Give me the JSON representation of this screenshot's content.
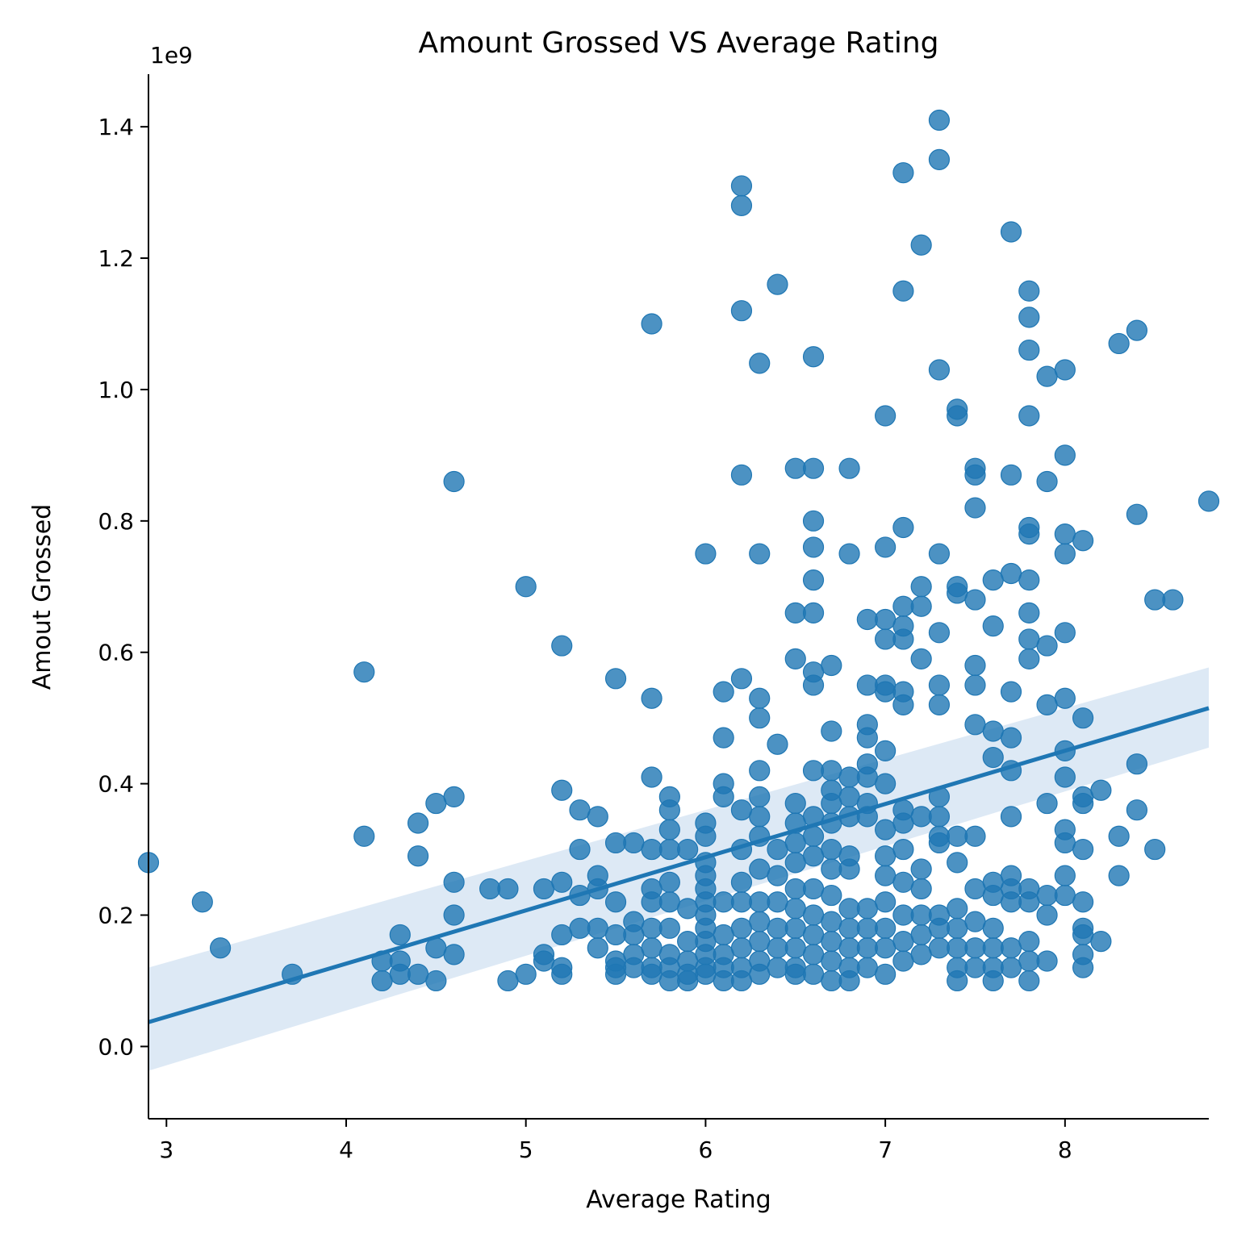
{
  "chart_data": {
    "type": "scatter",
    "title": "Amount Grossed VS Average Rating",
    "xlabel": "Average Rating",
    "ylabel": "Amout Grossed",
    "offset_text": "1e9",
    "xlim": [
      2.9,
      8.8
    ],
    "ylim": [
      -0.11,
      1.48
    ],
    "xticks": [
      3,
      4,
      5,
      6,
      7,
      8
    ],
    "yticks": [
      0.0,
      0.2,
      0.4,
      0.6,
      0.8,
      1.0,
      1.2,
      1.4
    ],
    "xtick_labels": [
      "3",
      "4",
      "5",
      "6",
      "7",
      "8"
    ],
    "ytick_labels": [
      "0.0",
      "0.2",
      "0.4",
      "0.6",
      "0.8",
      "1.0",
      "1.2",
      "1.4"
    ],
    "grid": false,
    "point_color": "#1f77b4",
    "regression": {
      "x": [
        2.9,
        8.8
      ],
      "y": [
        0.037,
        0.515
      ],
      "ci_lower": [
        -0.037,
        0.455
      ],
      "ci_upper": [
        0.12,
        0.577
      ],
      "ci_color": "#c6dbef"
    },
    "points": [
      [
        2.9,
        0.28
      ],
      [
        3.2,
        0.22
      ],
      [
        3.3,
        0.15
      ],
      [
        3.7,
        0.11
      ],
      [
        4.1,
        0.57
      ],
      [
        4.1,
        0.32
      ],
      [
        4.2,
        0.13
      ],
      [
        4.2,
        0.1
      ],
      [
        4.3,
        0.17
      ],
      [
        4.3,
        0.13
      ],
      [
        4.3,
        0.11
      ],
      [
        4.4,
        0.34
      ],
      [
        4.4,
        0.29
      ],
      [
        4.4,
        0.11
      ],
      [
        4.5,
        0.37
      ],
      [
        4.5,
        0.15
      ],
      [
        4.5,
        0.1
      ],
      [
        4.6,
        0.86
      ],
      [
        4.6,
        0.38
      ],
      [
        4.6,
        0.25
      ],
      [
        4.6,
        0.2
      ],
      [
        4.6,
        0.14
      ],
      [
        4.8,
        0.24
      ],
      [
        4.9,
        0.24
      ],
      [
        4.9,
        0.1
      ],
      [
        5.0,
        0.7
      ],
      [
        5.0,
        0.11
      ],
      [
        5.1,
        0.24
      ],
      [
        5.1,
        0.14
      ],
      [
        5.1,
        0.13
      ],
      [
        5.2,
        0.61
      ],
      [
        5.2,
        0.39
      ],
      [
        5.2,
        0.25
      ],
      [
        5.2,
        0.17
      ],
      [
        5.2,
        0.12
      ],
      [
        5.2,
        0.11
      ],
      [
        5.3,
        0.36
      ],
      [
        5.3,
        0.3
      ],
      [
        5.3,
        0.23
      ],
      [
        5.3,
        0.18
      ],
      [
        5.4,
        0.35
      ],
      [
        5.4,
        0.26
      ],
      [
        5.4,
        0.24
      ],
      [
        5.4,
        0.18
      ],
      [
        5.4,
        0.15
      ],
      [
        5.5,
        0.56
      ],
      [
        5.5,
        0.31
      ],
      [
        5.5,
        0.22
      ],
      [
        5.5,
        0.17
      ],
      [
        5.5,
        0.13
      ],
      [
        5.5,
        0.12
      ],
      [
        5.5,
        0.11
      ],
      [
        5.6,
        0.31
      ],
      [
        5.6,
        0.19
      ],
      [
        5.6,
        0.17
      ],
      [
        5.6,
        0.14
      ],
      [
        5.6,
        0.12
      ],
      [
        5.7,
        1.1
      ],
      [
        5.7,
        0.53
      ],
      [
        5.7,
        0.41
      ],
      [
        5.7,
        0.3
      ],
      [
        5.7,
        0.24
      ],
      [
        5.7,
        0.22
      ],
      [
        5.7,
        0.18
      ],
      [
        5.7,
        0.15
      ],
      [
        5.7,
        0.12
      ],
      [
        5.7,
        0.11
      ],
      [
        5.8,
        0.38
      ],
      [
        5.8,
        0.36
      ],
      [
        5.8,
        0.33
      ],
      [
        5.8,
        0.3
      ],
      [
        5.8,
        0.25
      ],
      [
        5.8,
        0.22
      ],
      [
        5.8,
        0.18
      ],
      [
        5.8,
        0.14
      ],
      [
        5.8,
        0.12
      ],
      [
        5.8,
        0.1
      ],
      [
        5.9,
        0.3
      ],
      [
        5.9,
        0.21
      ],
      [
        5.9,
        0.16
      ],
      [
        5.9,
        0.13
      ],
      [
        5.9,
        0.11
      ],
      [
        5.9,
        0.1
      ],
      [
        6.0,
        0.75
      ],
      [
        6.0,
        0.34
      ],
      [
        6.0,
        0.32
      ],
      [
        6.0,
        0.28
      ],
      [
        6.0,
        0.26
      ],
      [
        6.0,
        0.24
      ],
      [
        6.0,
        0.22
      ],
      [
        6.0,
        0.2
      ],
      [
        6.0,
        0.18
      ],
      [
        6.0,
        0.16
      ],
      [
        6.0,
        0.14
      ],
      [
        6.0,
        0.12
      ],
      [
        6.0,
        0.11
      ],
      [
        6.1,
        0.54
      ],
      [
        6.1,
        0.47
      ],
      [
        6.1,
        0.4
      ],
      [
        6.1,
        0.38
      ],
      [
        6.1,
        0.22
      ],
      [
        6.1,
        0.17
      ],
      [
        6.1,
        0.14
      ],
      [
        6.1,
        0.12
      ],
      [
        6.1,
        0.1
      ],
      [
        6.2,
        1.31
      ],
      [
        6.2,
        1.28
      ],
      [
        6.2,
        1.12
      ],
      [
        6.2,
        0.87
      ],
      [
        6.2,
        0.56
      ],
      [
        6.2,
        0.36
      ],
      [
        6.2,
        0.3
      ],
      [
        6.2,
        0.25
      ],
      [
        6.2,
        0.22
      ],
      [
        6.2,
        0.18
      ],
      [
        6.2,
        0.15
      ],
      [
        6.2,
        0.12
      ],
      [
        6.2,
        0.1
      ],
      [
        6.3,
        1.04
      ],
      [
        6.3,
        0.75
      ],
      [
        6.3,
        0.53
      ],
      [
        6.3,
        0.5
      ],
      [
        6.3,
        0.42
      ],
      [
        6.3,
        0.38
      ],
      [
        6.3,
        0.35
      ],
      [
        6.3,
        0.32
      ],
      [
        6.3,
        0.27
      ],
      [
        6.3,
        0.22
      ],
      [
        6.3,
        0.19
      ],
      [
        6.3,
        0.16
      ],
      [
        6.3,
        0.13
      ],
      [
        6.3,
        0.11
      ],
      [
        6.4,
        1.16
      ],
      [
        6.4,
        0.46
      ],
      [
        6.4,
        0.3
      ],
      [
        6.4,
        0.26
      ],
      [
        6.4,
        0.22
      ],
      [
        6.4,
        0.18
      ],
      [
        6.4,
        0.15
      ],
      [
        6.4,
        0.12
      ],
      [
        6.5,
        0.88
      ],
      [
        6.5,
        0.66
      ],
      [
        6.5,
        0.59
      ],
      [
        6.5,
        0.37
      ],
      [
        6.5,
        0.34
      ],
      [
        6.5,
        0.31
      ],
      [
        6.5,
        0.28
      ],
      [
        6.5,
        0.24
      ],
      [
        6.5,
        0.21
      ],
      [
        6.5,
        0.18
      ],
      [
        6.5,
        0.15
      ],
      [
        6.5,
        0.12
      ],
      [
        6.5,
        0.11
      ],
      [
        6.6,
        1.05
      ],
      [
        6.6,
        0.88
      ],
      [
        6.6,
        0.8
      ],
      [
        6.6,
        0.76
      ],
      [
        6.6,
        0.71
      ],
      [
        6.6,
        0.66
      ],
      [
        6.6,
        0.57
      ],
      [
        6.6,
        0.55
      ],
      [
        6.6,
        0.42
      ],
      [
        6.6,
        0.35
      ],
      [
        6.6,
        0.32
      ],
      [
        6.6,
        0.29
      ],
      [
        6.6,
        0.24
      ],
      [
        6.6,
        0.2
      ],
      [
        6.6,
        0.17
      ],
      [
        6.6,
        0.14
      ],
      [
        6.6,
        0.11
      ],
      [
        6.7,
        0.58
      ],
      [
        6.7,
        0.48
      ],
      [
        6.7,
        0.42
      ],
      [
        6.7,
        0.39
      ],
      [
        6.7,
        0.37
      ],
      [
        6.7,
        0.34
      ],
      [
        6.7,
        0.3
      ],
      [
        6.7,
        0.27
      ],
      [
        6.7,
        0.23
      ],
      [
        6.7,
        0.19
      ],
      [
        6.7,
        0.16
      ],
      [
        6.7,
        0.13
      ],
      [
        6.7,
        0.1
      ],
      [
        6.8,
        0.88
      ],
      [
        6.8,
        0.75
      ],
      [
        6.8,
        0.41
      ],
      [
        6.8,
        0.38
      ],
      [
        6.8,
        0.35
      ],
      [
        6.8,
        0.29
      ],
      [
        6.8,
        0.27
      ],
      [
        6.8,
        0.21
      ],
      [
        6.8,
        0.18
      ],
      [
        6.8,
        0.15
      ],
      [
        6.8,
        0.12
      ],
      [
        6.8,
        0.1
      ],
      [
        6.9,
        0.65
      ],
      [
        6.9,
        0.55
      ],
      [
        6.9,
        0.49
      ],
      [
        6.9,
        0.47
      ],
      [
        6.9,
        0.43
      ],
      [
        6.9,
        0.41
      ],
      [
        6.9,
        0.37
      ],
      [
        6.9,
        0.35
      ],
      [
        6.9,
        0.21
      ],
      [
        6.9,
        0.18
      ],
      [
        6.9,
        0.15
      ],
      [
        6.9,
        0.12
      ],
      [
        7.0,
        0.96
      ],
      [
        7.0,
        0.76
      ],
      [
        7.0,
        0.65
      ],
      [
        7.0,
        0.62
      ],
      [
        7.0,
        0.55
      ],
      [
        7.0,
        0.54
      ],
      [
        7.0,
        0.45
      ],
      [
        7.0,
        0.4
      ],
      [
        7.0,
        0.33
      ],
      [
        7.0,
        0.29
      ],
      [
        7.0,
        0.26
      ],
      [
        7.0,
        0.22
      ],
      [
        7.0,
        0.18
      ],
      [
        7.0,
        0.15
      ],
      [
        7.0,
        0.11
      ],
      [
        7.1,
        1.33
      ],
      [
        7.1,
        1.15
      ],
      [
        7.1,
        0.79
      ],
      [
        7.1,
        0.67
      ],
      [
        7.1,
        0.64
      ],
      [
        7.1,
        0.62
      ],
      [
        7.1,
        0.54
      ],
      [
        7.1,
        0.52
      ],
      [
        7.1,
        0.36
      ],
      [
        7.1,
        0.34
      ],
      [
        7.1,
        0.3
      ],
      [
        7.1,
        0.25
      ],
      [
        7.1,
        0.2
      ],
      [
        7.1,
        0.16
      ],
      [
        7.1,
        0.13
      ],
      [
        7.2,
        1.22
      ],
      [
        7.2,
        0.7
      ],
      [
        7.2,
        0.67
      ],
      [
        7.2,
        0.59
      ],
      [
        7.2,
        0.35
      ],
      [
        7.2,
        0.27
      ],
      [
        7.2,
        0.24
      ],
      [
        7.2,
        0.2
      ],
      [
        7.2,
        0.17
      ],
      [
        7.2,
        0.14
      ],
      [
        7.3,
        1.41
      ],
      [
        7.3,
        1.35
      ],
      [
        7.3,
        1.03
      ],
      [
        7.3,
        0.75
      ],
      [
        7.3,
        0.63
      ],
      [
        7.3,
        0.55
      ],
      [
        7.3,
        0.52
      ],
      [
        7.3,
        0.38
      ],
      [
        7.3,
        0.35
      ],
      [
        7.3,
        0.32
      ],
      [
        7.3,
        0.31
      ],
      [
        7.3,
        0.2
      ],
      [
        7.3,
        0.18
      ],
      [
        7.3,
        0.15
      ],
      [
        7.4,
        0.97
      ],
      [
        7.4,
        0.96
      ],
      [
        7.4,
        0.7
      ],
      [
        7.4,
        0.69
      ],
      [
        7.4,
        0.32
      ],
      [
        7.4,
        0.28
      ],
      [
        7.4,
        0.21
      ],
      [
        7.4,
        0.18
      ],
      [
        7.4,
        0.15
      ],
      [
        7.4,
        0.12
      ],
      [
        7.4,
        0.1
      ],
      [
        7.5,
        0.88
      ],
      [
        7.5,
        0.87
      ],
      [
        7.5,
        0.82
      ],
      [
        7.5,
        0.68
      ],
      [
        7.5,
        0.58
      ],
      [
        7.5,
        0.55
      ],
      [
        7.5,
        0.49
      ],
      [
        7.5,
        0.32
      ],
      [
        7.5,
        0.24
      ],
      [
        7.5,
        0.19
      ],
      [
        7.5,
        0.15
      ],
      [
        7.5,
        0.12
      ],
      [
        7.6,
        0.71
      ],
      [
        7.6,
        0.64
      ],
      [
        7.6,
        0.48
      ],
      [
        7.6,
        0.44
      ],
      [
        7.6,
        0.25
      ],
      [
        7.6,
        0.23
      ],
      [
        7.6,
        0.18
      ],
      [
        7.6,
        0.15
      ],
      [
        7.6,
        0.12
      ],
      [
        7.6,
        0.1
      ],
      [
        7.7,
        1.24
      ],
      [
        7.7,
        0.87
      ],
      [
        7.7,
        0.72
      ],
      [
        7.7,
        0.54
      ],
      [
        7.7,
        0.47
      ],
      [
        7.7,
        0.42
      ],
      [
        7.7,
        0.35
      ],
      [
        7.7,
        0.26
      ],
      [
        7.7,
        0.24
      ],
      [
        7.7,
        0.22
      ],
      [
        7.7,
        0.15
      ],
      [
        7.7,
        0.12
      ],
      [
        7.8,
        1.15
      ],
      [
        7.8,
        1.11
      ],
      [
        7.8,
        1.06
      ],
      [
        7.8,
        0.96
      ],
      [
        7.8,
        0.79
      ],
      [
        7.8,
        0.78
      ],
      [
        7.8,
        0.71
      ],
      [
        7.8,
        0.66
      ],
      [
        7.8,
        0.62
      ],
      [
        7.8,
        0.59
      ],
      [
        7.8,
        0.24
      ],
      [
        7.8,
        0.22
      ],
      [
        7.8,
        0.16
      ],
      [
        7.8,
        0.13
      ],
      [
        7.8,
        0.1
      ],
      [
        7.9,
        1.02
      ],
      [
        7.9,
        0.86
      ],
      [
        7.9,
        0.61
      ],
      [
        7.9,
        0.52
      ],
      [
        7.9,
        0.37
      ],
      [
        7.9,
        0.23
      ],
      [
        7.9,
        0.2
      ],
      [
        7.9,
        0.13
      ],
      [
        8.0,
        1.03
      ],
      [
        8.0,
        0.9
      ],
      [
        8.0,
        0.78
      ],
      [
        8.0,
        0.75
      ],
      [
        8.0,
        0.63
      ],
      [
        8.0,
        0.53
      ],
      [
        8.0,
        0.45
      ],
      [
        8.0,
        0.41
      ],
      [
        8.0,
        0.33
      ],
      [
        8.0,
        0.31
      ],
      [
        8.0,
        0.26
      ],
      [
        8.0,
        0.23
      ],
      [
        8.1,
        0.77
      ],
      [
        8.1,
        0.5
      ],
      [
        8.1,
        0.38
      ],
      [
        8.1,
        0.37
      ],
      [
        8.1,
        0.3
      ],
      [
        8.1,
        0.22
      ],
      [
        8.1,
        0.18
      ],
      [
        8.1,
        0.17
      ],
      [
        8.1,
        0.14
      ],
      [
        8.1,
        0.12
      ],
      [
        8.2,
        0.39
      ],
      [
        8.2,
        0.16
      ],
      [
        8.3,
        1.07
      ],
      [
        8.3,
        0.32
      ],
      [
        8.3,
        0.26
      ],
      [
        8.4,
        1.09
      ],
      [
        8.4,
        0.81
      ],
      [
        8.4,
        0.43
      ],
      [
        8.4,
        0.36
      ],
      [
        8.5,
        0.68
      ],
      [
        8.5,
        0.3
      ],
      [
        8.6,
        0.68
      ],
      [
        8.8,
        0.83
      ]
    ]
  }
}
